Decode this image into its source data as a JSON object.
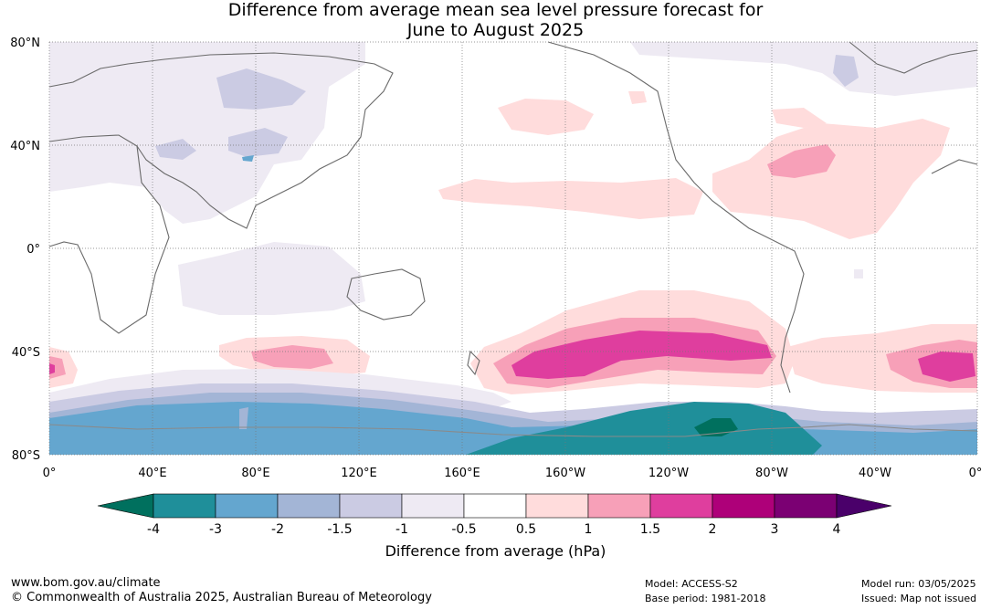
{
  "title": {
    "line1": "Difference from average mean sea level pressure forecast for",
    "line2": "June to August 2025"
  },
  "map": {
    "lat_labels": [
      "80°N",
      "40°N",
      "0°",
      "40°S",
      "80°S"
    ],
    "lon_labels": [
      "0°",
      "40°E",
      "80°E",
      "120°E",
      "160°E",
      "160°W",
      "120°W",
      "80°W",
      "40°W",
      "0°"
    ]
  },
  "colorbar": {
    "ticks": [
      "-4",
      "-3",
      "-2",
      "-1.5",
      "-1",
      "-0.5",
      "0.5",
      "1",
      "1.5",
      "2",
      "3",
      "4"
    ],
    "colors": [
      "#00705e",
      "#1f8f9a",
      "#64a6cf",
      "#a3b5d6",
      "#cbcbe3",
      "#eeeaf3",
      "#ffffff",
      "#ffdcdc",
      "#f7a0b8",
      "#df3e9e",
      "#ae0079",
      "#7b0073",
      "#4a006a"
    ],
    "label": "Difference from average (hPa)"
  },
  "footer": {
    "url": "www.bom.gov.au/climate",
    "copyright": "© Commonwealth of Australia 2025, Australian Bureau of Meteorology",
    "model": "Model: ACCESS-S2",
    "base_period": "Base period: 1981-2018",
    "model_run": "Model run: 03/05/2025",
    "issued": "Issued: Map not issued"
  }
}
